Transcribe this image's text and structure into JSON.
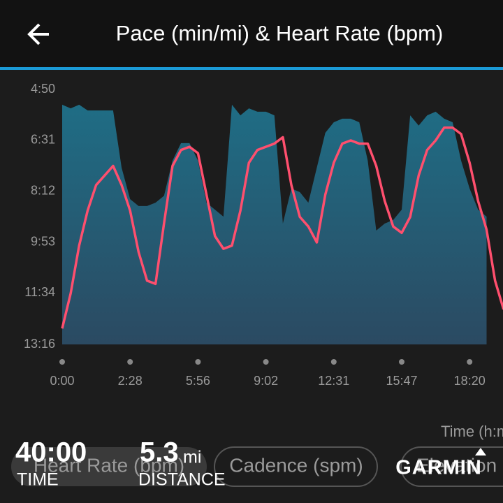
{
  "header": {
    "title": "Pace (min/mi) & Heart Rate (bpm)"
  },
  "chart_data": {
    "type": "area-line",
    "xlabel": "Time (h:m:s)",
    "xlim": [
      0,
      52
    ],
    "xticks": [
      {
        "value": 0,
        "label": "0:00"
      },
      {
        "value": 8,
        "label": "2:28"
      },
      {
        "value": 16,
        "label": "5:56"
      },
      {
        "value": 24,
        "label": "9:02"
      },
      {
        "value": 32,
        "label": "12:31"
      },
      {
        "value": 40,
        "label": "15:47"
      },
      {
        "value": 48,
        "label": "18:20"
      }
    ],
    "ylim": [
      13.2667,
      4.8333
    ],
    "yticks": [
      {
        "value": 4.8333,
        "label": "4:50"
      },
      {
        "value": 6.5167,
        "label": "6:31"
      },
      {
        "value": 8.2,
        "label": "8:12"
      },
      {
        "value": 9.8833,
        "label": "9:53"
      },
      {
        "value": 11.5667,
        "label": "11:34"
      },
      {
        "value": 13.2667,
        "label": "13:16"
      }
    ],
    "y2lim": [
      100,
      180
    ],
    "series": [
      {
        "color": "#1f6d85",
        "values": [
          5.34,
          5.46,
          5.34,
          5.53,
          5.53,
          5.53,
          5.53,
          7.42,
          8.46,
          8.69,
          8.69,
          8.58,
          8.35,
          7.19,
          6.61,
          6.61,
          7.19,
          8.58,
          8.81,
          9.04,
          5.34,
          5.69,
          5.46,
          5.57,
          5.57,
          5.69,
          9.27,
          8.11,
          8.23,
          8.58,
          7.42,
          6.27,
          5.92,
          5.8,
          5.8,
          5.92,
          7.19,
          9.5,
          9.27,
          9.15,
          8.81,
          5.69,
          6.03,
          5.69,
          5.57,
          5.8,
          5.92,
          7.19,
          8.11,
          8.81,
          9.04,
          null,
          null
        ]
      },
      {
        "color": "#ff4f6e",
        "axis": "y2",
        "values": [
          105,
          116,
          131,
          142,
          150,
          153,
          156,
          150,
          142,
          129,
          120,
          119,
          138,
          156,
          161,
          162,
          160,
          147,
          134,
          130,
          131,
          142,
          157,
          161,
          162,
          163,
          165,
          150,
          140,
          137,
          132,
          147,
          157,
          163,
          164,
          163,
          163,
          156,
          145,
          137,
          135,
          140,
          153,
          161,
          164,
          168,
          168,
          166,
          157,
          145,
          136,
          120,
          111
        ]
      }
    ]
  },
  "tabs": [
    "Heart Rate (bpm)",
    "Cadence (spm)",
    "Elevation (ft)"
  ],
  "summary": {
    "time": "40:00",
    "time_label": "TIME",
    "distance": "5.3",
    "distance_unit": "mi",
    "distance_label": "DISTANCE",
    "brand": "GARMIN"
  }
}
